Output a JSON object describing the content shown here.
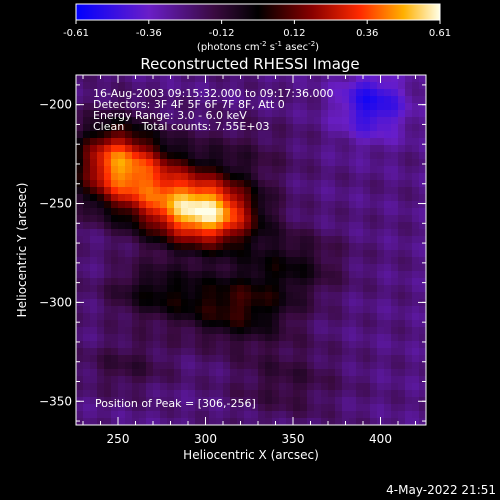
{
  "chart_data": {
    "type": "heatmap",
    "title": "Reconstructed RHESSI Image",
    "xlabel": "Heliocentric X (arcsec)",
    "ylabel": "Heliocentric Y (arcsec)",
    "xlim": [
      226,
      426
    ],
    "ylim": [
      -362,
      -185
    ],
    "x_ticks": [
      250,
      300,
      350,
      400
    ],
    "y_ticks": [
      -200,
      -250,
      -300,
      -350
    ],
    "colorbar": {
      "min": -0.61,
      "max": 0.61,
      "ticks": [
        "-0.61",
        "-0.36",
        "-0.12",
        "0.12",
        "0.36",
        "0.61"
      ],
      "units_text": "(photons cm",
      "units_sup1": "-2",
      "units_mid": " s",
      "units_sup2": "-1",
      "units_end": " asec",
      "units_sup3": "-2",
      "units_close": ")"
    },
    "annotations": [
      "16-Aug-2003 09:15:32.000 to 09:17:36.000",
      "Detectors: 3F 4F 5F 6F 7F 8F, Att 0",
      "Energy Range: 3.0 - 6.0 keV",
      "Clean     Total counts: 7.55E+03"
    ],
    "peak_label": "Position of Peak = [306,-256]",
    "peak": [
      306,
      -256
    ],
    "sources": [
      {
        "x": 306,
        "y": -255,
        "amp": 0.61,
        "sx": 18,
        "sy": 12
      },
      {
        "x": 248,
        "y": -228,
        "amp": 0.5,
        "sx": 16,
        "sy": 14
      },
      {
        "x": 268,
        "y": -240,
        "amp": 0.38,
        "sx": 22,
        "sy": 14
      },
      {
        "x": 285,
        "y": -255,
        "amp": 0.28,
        "sx": 18,
        "sy": 12
      },
      {
        "x": 272,
        "y": -295,
        "amp": 0.22,
        "sx": 20,
        "sy": 10
      },
      {
        "x": 318,
        "y": -303,
        "amp": 0.3,
        "sx": 22,
        "sy": 12
      },
      {
        "x": 348,
        "y": -281,
        "amp": 0.2,
        "sx": 20,
        "sy": 12
      },
      {
        "x": 255,
        "y": -332,
        "amp": 0.12,
        "sx": 18,
        "sy": 10
      },
      {
        "x": 345,
        "y": -340,
        "amp": 0.12,
        "sx": 22,
        "sy": 14
      },
      {
        "x": 320,
        "y": -225,
        "amp": 0.1,
        "sx": 22,
        "sy": 12
      },
      {
        "x": 395,
        "y": -200,
        "amp": -0.28,
        "sx": 14,
        "sy": 12
      }
    ],
    "background": -0.25
  },
  "footer_date": "4-May-2022 21:51"
}
